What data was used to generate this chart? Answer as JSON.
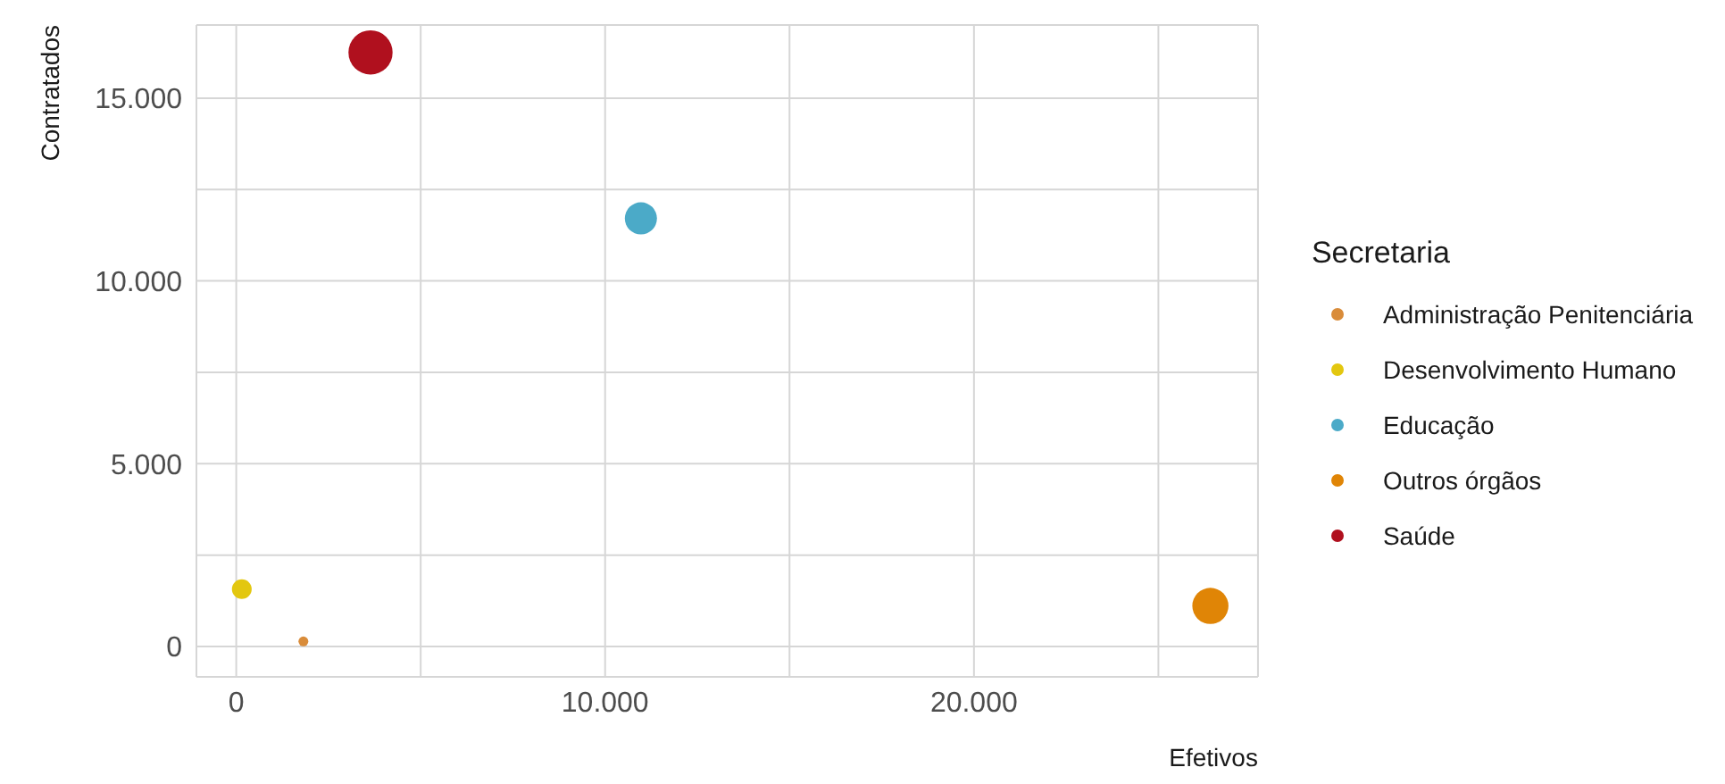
{
  "chart_data": {
    "type": "bubble",
    "xlabel": "Efetivos",
    "ylabel": "Contratados",
    "legend_title": "Secretaria",
    "legend": "right",
    "grid": true,
    "xlim": [
      -1080,
      27700
    ],
    "ylim": [
      -830,
      17000
    ],
    "xticks": [
      {
        "value": 0,
        "label": "0"
      },
      {
        "value": 5000,
        "label": null
      },
      {
        "value": 10000,
        "label": "10.000"
      },
      {
        "value": 15000,
        "label": null
      },
      {
        "value": 20000,
        "label": "20.000"
      },
      {
        "value": 25000,
        "label": null
      }
    ],
    "yticks": [
      {
        "value": 0,
        "label": "0"
      },
      {
        "value": 2500,
        "label": null
      },
      {
        "value": 5000,
        "label": "5.000"
      },
      {
        "value": 7500,
        "label": null
      },
      {
        "value": 10000,
        "label": "10.000"
      },
      {
        "value": 12500,
        "label": null
      },
      {
        "value": 15000,
        "label": "15.000"
      }
    ],
    "series": [
      {
        "name": "Administração Penitenciária",
        "color": "#d98c3a",
        "x": [
          1820
        ],
        "values": [
          140
        ],
        "sizes": [
          0.05
        ]
      },
      {
        "name": "Desenvolvimento Humano",
        "color": "#e3c70f",
        "x": [
          150
        ],
        "values": [
          1570
        ],
        "sizes": [
          0.2
        ]
      },
      {
        "name": "Educação",
        "color": "#4baac8",
        "x": [
          10970
        ],
        "values": [
          11710
        ],
        "sizes": [
          0.53
        ]
      },
      {
        "name": "Outros órgãos",
        "color": "#e08506",
        "x": [
          26410
        ],
        "values": [
          1110
        ],
        "sizes": [
          0.67
        ]
      },
      {
        "name": "Saúde",
        "color": "#b0101e",
        "x": [
          3640
        ],
        "values": [
          16250
        ],
        "sizes": [
          1
        ]
      }
    ]
  }
}
